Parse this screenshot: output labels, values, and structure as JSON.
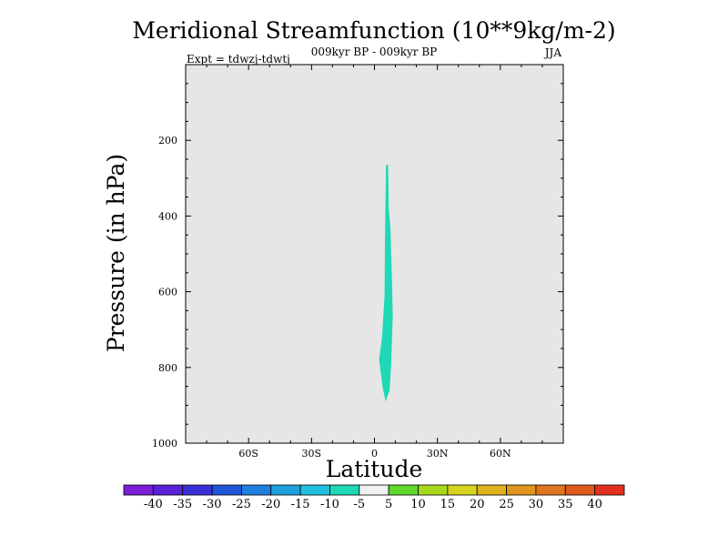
{
  "chart_data": {
    "type": "contour",
    "title": "Meridional Streamfunction (10**9kg/m-2)",
    "subtitle": "009kyr BP - 009kyr BP",
    "season": "JJA",
    "experiment": "Expt = tdwzj-tdwtj",
    "xlabel": "Latitude",
    "ylabel": "Pressure (in hPa)",
    "xlim": [
      -90,
      90
    ],
    "ylim": [
      0,
      1000
    ],
    "y_inverted": true,
    "x_tick_labels": [
      "60S",
      "30S",
      "0",
      "30N",
      "60N"
    ],
    "x_tick_values": [
      -60,
      -30,
      0,
      30,
      60
    ],
    "y_tick_labels": [
      "200",
      "400",
      "600",
      "800",
      "1000"
    ],
    "y_tick_values": [
      200,
      400,
      600,
      800,
      1000
    ],
    "plot_background": "#e6e6e6",
    "colorbar": {
      "labels": [
        "-40",
        "-35",
        "-30",
        "-25",
        "-20",
        "-15",
        "-10",
        "-5",
        "5",
        "10",
        "15",
        "20",
        "25",
        "30",
        "35",
        "40"
      ],
      "colors": [
        "#7a1fd6",
        "#5a22d6",
        "#3a30d8",
        "#1f55d9",
        "#1e7fdc",
        "#1fa0dd",
        "#22bfdc",
        "#1ed8b6",
        "#f0f0f0",
        "#5fd82b",
        "#a8d81e",
        "#d6d41e",
        "#e0b21e",
        "#e0951e",
        "#e0741e",
        "#e05a1e",
        "#e0301e"
      ]
    },
    "shaded_regions": [
      {
        "level_range": [
          -10,
          -5
        ],
        "color": "#1ed8b6",
        "polygon": [
          [
            5.5,
            265
          ],
          [
            6.5,
            265
          ],
          [
            6.8,
            380
          ],
          [
            7.6,
            430
          ],
          [
            8.2,
            540
          ],
          [
            8.7,
            660
          ],
          [
            8.0,
            790
          ],
          [
            7.2,
            860
          ],
          [
            5.3,
            890
          ],
          [
            3.8,
            850
          ],
          [
            2.2,
            780
          ],
          [
            3.6,
            720
          ],
          [
            4.8,
            610
          ],
          [
            5.0,
            470
          ],
          [
            5.2,
            380
          ],
          [
            5.4,
            300
          ]
        ]
      }
    ]
  }
}
